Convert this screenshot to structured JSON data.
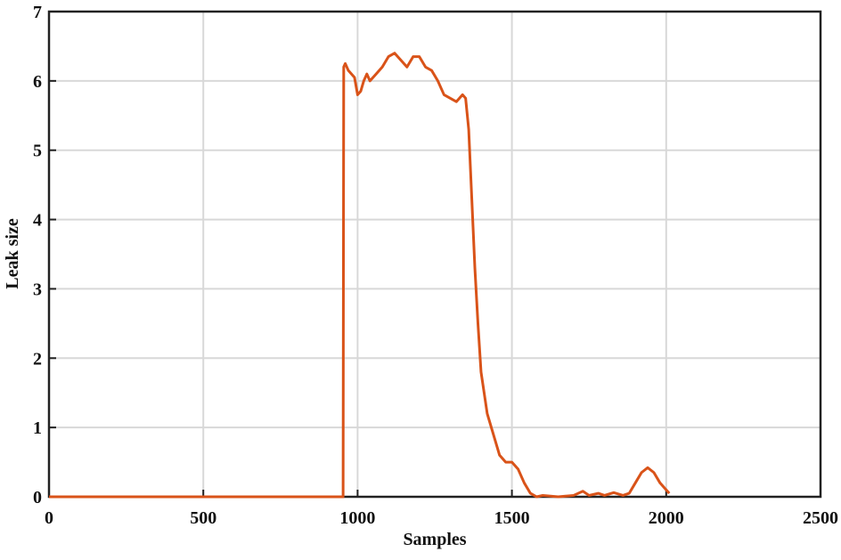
{
  "chart_data": {
    "type": "line",
    "xlabel": "Samples",
    "ylabel": "Leak size",
    "xlim": [
      0,
      2500
    ],
    "xticks": [
      0,
      500,
      1000,
      1500,
      2000,
      2500
    ],
    "ylim": [
      0,
      7
    ],
    "yticks": [
      0,
      1,
      2,
      3,
      4,
      5,
      6,
      7
    ],
    "grid": true,
    "x": [
      0,
      953,
      955,
      960,
      970,
      990,
      1000,
      1010,
      1020,
      1030,
      1040,
      1060,
      1080,
      1100,
      1120,
      1140,
      1160,
      1180,
      1200,
      1220,
      1240,
      1260,
      1280,
      1300,
      1320,
      1340,
      1350,
      1360,
      1370,
      1380,
      1390,
      1400,
      1410,
      1420,
      1440,
      1460,
      1480,
      1500,
      1520,
      1540,
      1560,
      1580,
      1600,
      1650,
      1700,
      1730,
      1750,
      1780,
      1800,
      1830,
      1860,
      1880,
      1900,
      1920,
      1940,
      1960,
      1980,
      2000,
      2010
    ],
    "series": [
      {
        "name": "Leak size",
        "color": "#d95319",
        "values": [
          0,
          0,
          6.2,
          6.25,
          6.15,
          6.05,
          5.8,
          5.85,
          6.0,
          6.1,
          6.0,
          6.1,
          6.2,
          6.35,
          6.4,
          6.3,
          6.2,
          6.35,
          6.35,
          6.2,
          6.15,
          6.0,
          5.8,
          5.75,
          5.7,
          5.8,
          5.75,
          5.3,
          4.3,
          3.3,
          2.5,
          1.8,
          1.5,
          1.2,
          0.9,
          0.6,
          0.5,
          0.5,
          0.4,
          0.2,
          0.05,
          0,
          0.02,
          0,
          0.02,
          0.08,
          0.02,
          0.05,
          0.02,
          0.06,
          0.02,
          0.05,
          0.2,
          0.35,
          0.42,
          0.35,
          0.2,
          0.1,
          0.05
        ]
      }
    ]
  }
}
